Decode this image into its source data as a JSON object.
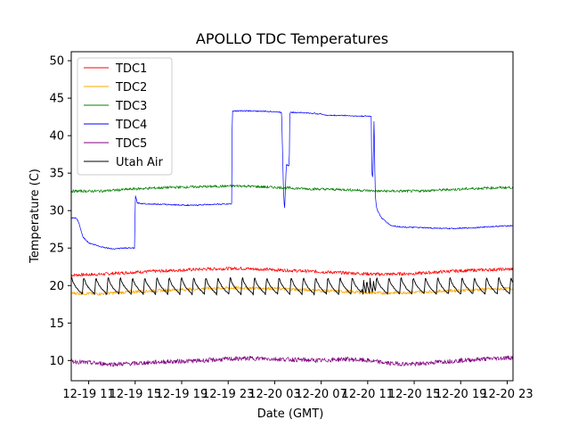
{
  "chart_data": {
    "type": "line",
    "title": "APOLLO TDC Temperatures",
    "xlabel": "Date (GMT)",
    "ylabel": "Temperature (C)",
    "xlim": [
      9.5,
      47.5
    ],
    "ylim": [
      7.3,
      51.2
    ],
    "x_ticks": [
      {
        "value": 11,
        "label": "12-19 11"
      },
      {
        "value": 15,
        "label": "12-19 15"
      },
      {
        "value": 19,
        "label": "12-19 19"
      },
      {
        "value": 23,
        "label": "12-19 23"
      },
      {
        "value": 27,
        "label": "12-20 03"
      },
      {
        "value": 31,
        "label": "12-20 07"
      },
      {
        "value": 35,
        "label": "12-20 11"
      },
      {
        "value": 39,
        "label": "12-20 15"
      },
      {
        "value": 43,
        "label": "12-20 19"
      },
      {
        "value": 47,
        "label": "12-20 23"
      }
    ],
    "y_ticks": [
      10,
      15,
      20,
      25,
      30,
      35,
      40,
      45,
      50
    ],
    "legend_position": "top-left",
    "series": [
      {
        "name": "TDC1",
        "color": "#ff0000",
        "x": [
          9.5,
          12,
          15,
          18,
          21,
          24,
          27,
          30,
          33,
          36,
          39,
          42,
          45,
          47.5
        ],
        "y": [
          21.4,
          21.5,
          21.8,
          22.0,
          22.2,
          22.3,
          22.1,
          21.9,
          21.7,
          21.5,
          21.6,
          21.9,
          22.1,
          22.2
        ]
      },
      {
        "name": "TDC2",
        "color": "#ffa500",
        "x": [
          9.5,
          12,
          15,
          18,
          21,
          24,
          27,
          30,
          33,
          36,
          39,
          42,
          45,
          47.5
        ],
        "y": [
          19.0,
          18.9,
          19.2,
          19.4,
          19.6,
          19.7,
          19.6,
          19.4,
          19.2,
          19.0,
          19.1,
          19.3,
          19.5,
          19.6
        ]
      },
      {
        "name": "TDC3",
        "color": "#008000",
        "x": [
          9.5,
          12,
          15,
          18,
          21,
          24,
          27,
          30,
          33,
          36,
          39,
          42,
          45,
          47.5
        ],
        "y": [
          32.6,
          32.6,
          32.9,
          33.1,
          33.2,
          33.3,
          33.1,
          32.9,
          32.8,
          32.6,
          32.6,
          32.8,
          33.0,
          33.1
        ]
      },
      {
        "name": "TDC4",
        "color": "#0000ff",
        "x": [
          9.5,
          9.9,
          10.1,
          10.5,
          11.0,
          12.0,
          13.0,
          14.0,
          14.96,
          15.0,
          15.2,
          16.0,
          18.0,
          20.0,
          21.0,
          23.3,
          23.35,
          23.4,
          25.0,
          27.0,
          27.6,
          27.75,
          27.85,
          28.0,
          28.15,
          28.25,
          28.3,
          28.35,
          29.0,
          30.0,
          31.0,
          31.5,
          33.0,
          34.0,
          35.3,
          35.35,
          35.45,
          35.55,
          35.65,
          35.75,
          35.85,
          36.2,
          36.6,
          37.0,
          38.0,
          40.0,
          42.0,
          44.0,
          46.0,
          47.5
        ],
        "y": [
          29.0,
          29.0,
          28.6,
          26.5,
          25.7,
          25.2,
          24.9,
          25.0,
          25.0,
          32.0,
          31.0,
          30.9,
          30.8,
          30.7,
          30.8,
          30.9,
          43.2,
          43.3,
          43.3,
          43.2,
          43.1,
          33.0,
          30.0,
          36.2,
          36.0,
          36.0,
          42.9,
          43.1,
          43.1,
          43.0,
          42.9,
          42.7,
          42.7,
          42.6,
          42.6,
          35.0,
          34.4,
          42.7,
          32.0,
          30.5,
          30.0,
          29.0,
          28.5,
          28.0,
          27.8,
          27.7,
          27.6,
          27.7,
          27.9,
          28.0
        ]
      },
      {
        "name": "TDC5",
        "color": "#800080",
        "x": [
          9.5,
          11,
          13,
          15,
          17,
          19,
          21,
          23,
          25,
          27,
          29,
          31,
          33,
          35,
          37,
          39,
          41,
          43,
          45,
          47.5
        ],
        "y": [
          9.9,
          9.7,
          9.5,
          9.6,
          9.8,
          9.9,
          10.0,
          10.2,
          10.3,
          10.2,
          10.1,
          10.0,
          10.2,
          10.0,
          9.6,
          9.5,
          9.8,
          10.0,
          10.2,
          10.4
        ]
      },
      {
        "name": "Utah Air",
        "color": "#000000",
        "x": [
          9.5,
          47.5
        ],
        "y": [
          20.0,
          20.0
        ],
        "note": "sawtooth cycling roughly 18.7–21.4 C"
      }
    ]
  }
}
